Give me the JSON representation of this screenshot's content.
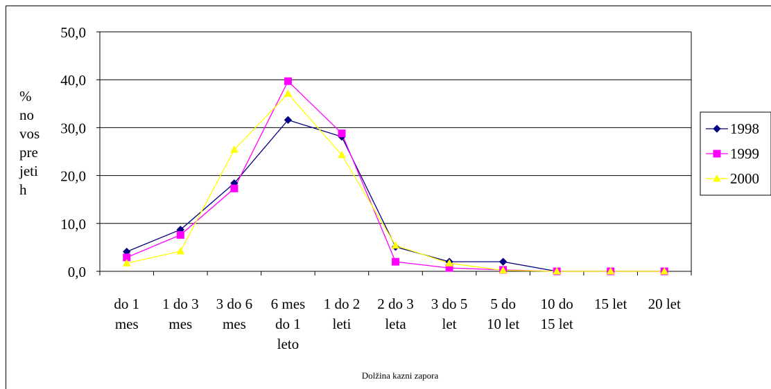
{
  "chart_data": {
    "type": "line",
    "title": "",
    "xlabel": "Dolžina kazni zapora",
    "ylabel_lines": [
      "%",
      "no",
      "vos",
      "pre",
      "jeti",
      "h"
    ],
    "ylim": [
      0,
      50
    ],
    "yticks": [
      "0,0",
      "10,0",
      "20,0",
      "30,0",
      "40,0",
      "50,0"
    ],
    "grid": true,
    "legend_position": "right",
    "categories": [
      [
        "do 1",
        "mes"
      ],
      [
        "1 do 3",
        "mes"
      ],
      [
        "3 do 6",
        "mes"
      ],
      [
        "6 mes",
        "do 1",
        "leto"
      ],
      [
        "1 do 2",
        "leti"
      ],
      [
        "2 do 3",
        "leta"
      ],
      [
        "3 do 5",
        "let"
      ],
      [
        "5 do",
        "10 let"
      ],
      [
        "10 do",
        "15 let"
      ],
      [
        "15 let"
      ],
      [
        "20 let"
      ]
    ],
    "series": [
      {
        "name": "1998",
        "color": "#000080",
        "marker": "diamond",
        "values": [
          4.1,
          8.7,
          18.4,
          31.6,
          28.1,
          5.1,
          2.0,
          2.0,
          0.0,
          0.0,
          0.0
        ]
      },
      {
        "name": "1999",
        "color": "#ff00ff",
        "marker": "square",
        "values": [
          2.9,
          7.6,
          17.3,
          39.7,
          28.8,
          2.0,
          0.7,
          0.3,
          0.0,
          0.0,
          0.0
        ]
      },
      {
        "name": "2000",
        "color": "#ffff00",
        "marker": "triangle",
        "values": [
          1.7,
          4.2,
          25.4,
          37.1,
          24.3,
          5.4,
          1.7,
          0.2,
          0.0,
          0.0,
          0.0
        ]
      }
    ]
  }
}
